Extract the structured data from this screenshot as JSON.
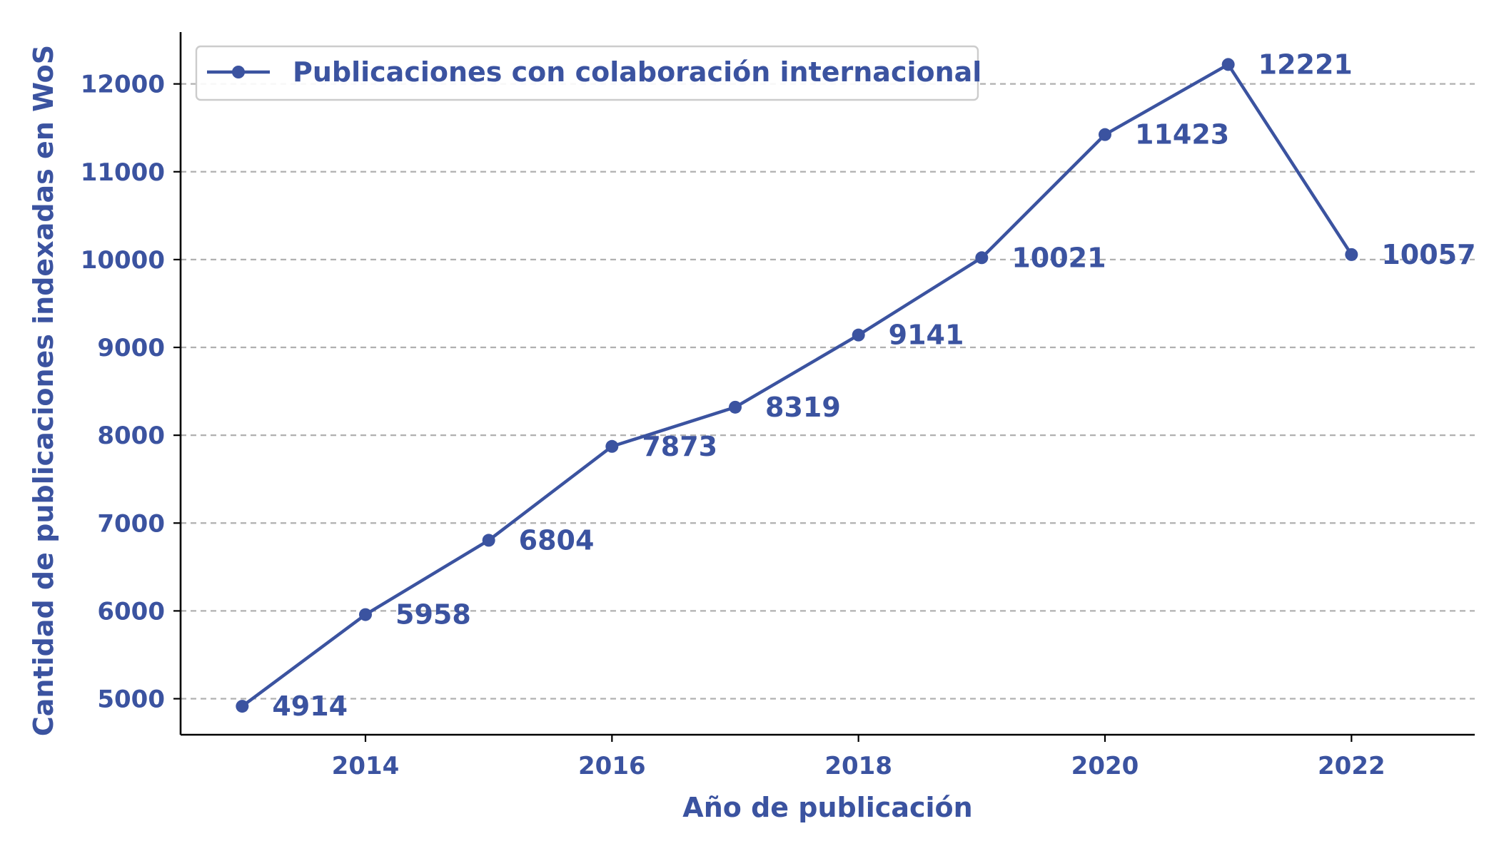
{
  "colors": {
    "series": "#3b53a0",
    "text": "#3b53a0",
    "grid": "#b0b0b0",
    "axis": "#000000",
    "legend_border": "#cccccc"
  },
  "chart_data": {
    "type": "line",
    "title": "",
    "xlabel": "Año de publicación",
    "ylabel": "Cantidad de publicaciones indexadas en WoS",
    "x": [
      2013,
      2014,
      2015,
      2016,
      2017,
      2018,
      2019,
      2020,
      2021,
      2022
    ],
    "series": [
      {
        "name": "Publicaciones con colaboración internacional",
        "values": [
          4914,
          5958,
          6804,
          7873,
          8319,
          9141,
          10021,
          11423,
          12221,
          10057
        ]
      }
    ],
    "xlim": [
      2012.5,
      2023.0
    ],
    "ylim": [
      4590,
      12590
    ],
    "xticks": [
      2014,
      2016,
      2018,
      2020,
      2022
    ],
    "yticks": [
      5000,
      6000,
      7000,
      8000,
      9000,
      10000,
      11000,
      12000
    ],
    "grid": "horizontal dashed",
    "legend": "top-left",
    "marker": "circle",
    "data_labels": true
  }
}
